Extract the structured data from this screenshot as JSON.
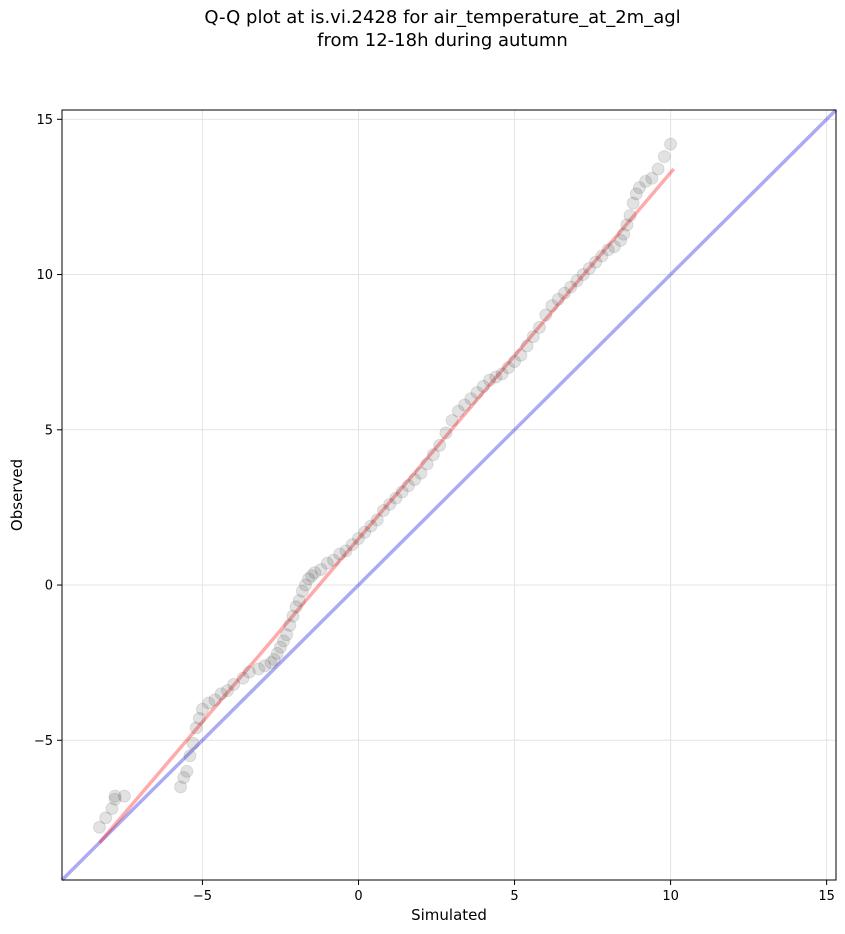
{
  "chart_data": {
    "type": "scatter",
    "title_line1": "Q-Q plot at is.vi.2428 for air_temperature_at_2m_agl",
    "title_line2": "from 12-18h during autumn",
    "xlabel": "Simulated",
    "ylabel": "Observed",
    "xlim": [
      -9.5,
      15.3
    ],
    "ylim": [
      -9.5,
      15.3
    ],
    "xticks": [
      -5,
      0,
      5,
      10,
      15
    ],
    "yticks": [
      -5,
      0,
      5,
      10,
      15
    ],
    "xtick_labels": [
      "−5",
      "0",
      "5",
      "10",
      "15"
    ],
    "ytick_labels": [
      "−5",
      "0",
      "5",
      "10",
      "15"
    ],
    "grid": true,
    "identity_line": {
      "x": [
        -9.5,
        15.3
      ],
      "y": [
        -9.5,
        15.3
      ],
      "color": "#0000dd"
    },
    "fit_line": {
      "x": [
        -8.3,
        10.1
      ],
      "y": [
        -8.3,
        13.4
      ],
      "color": "#ff0000"
    },
    "points": {
      "color": "#333333",
      "x": [
        -8.3,
        -8.1,
        -7.9,
        -7.8,
        -7.8,
        -7.5,
        -5.7,
        -5.6,
        -5.5,
        -5.4,
        -5.3,
        -5.2,
        -5.1,
        -5.0,
        -4.8,
        -4.6,
        -4.4,
        -4.2,
        -4.0,
        -3.7,
        -3.5,
        -3.2,
        -3.0,
        -2.8,
        -2.7,
        -2.6,
        -2.5,
        -2.4,
        -2.3,
        -2.2,
        -2.1,
        -2.0,
        -1.9,
        -1.8,
        -1.7,
        -1.6,
        -1.5,
        -1.4,
        -1.2,
        -1.0,
        -0.8,
        -0.6,
        -0.4,
        -0.2,
        0.0,
        0.2,
        0.4,
        0.6,
        0.8,
        1.0,
        1.2,
        1.4,
        1.6,
        1.8,
        2.0,
        2.2,
        2.4,
        2.6,
        2.8,
        3.0,
        3.2,
        3.4,
        3.6,
        3.8,
        4.0,
        4.2,
        4.4,
        4.6,
        4.8,
        5.0,
        5.2,
        5.4,
        5.6,
        5.8,
        6.0,
        6.2,
        6.4,
        6.6,
        6.8,
        7.0,
        7.2,
        7.4,
        7.6,
        7.8,
        8.0,
        8.2,
        8.4,
        8.5,
        8.6,
        8.7,
        8.8,
        8.9,
        9.0,
        9.2,
        9.4,
        9.6,
        9.8,
        10.0
      ],
      "y": [
        -7.8,
        -7.5,
        -7.2,
        -6.9,
        -6.8,
        -6.8,
        -6.5,
        -6.2,
        -6.0,
        -5.5,
        -5.1,
        -4.6,
        -4.3,
        -4.0,
        -3.8,
        -3.7,
        -3.5,
        -3.4,
        -3.2,
        -3.0,
        -2.8,
        -2.7,
        -2.6,
        -2.5,
        -2.4,
        -2.2,
        -2.0,
        -1.8,
        -1.6,
        -1.3,
        -1.0,
        -0.7,
        -0.5,
        -0.2,
        0.0,
        0.2,
        0.3,
        0.4,
        0.5,
        0.7,
        0.8,
        1.0,
        1.1,
        1.3,
        1.5,
        1.7,
        1.9,
        2.1,
        2.4,
        2.6,
        2.8,
        3.0,
        3.2,
        3.4,
        3.6,
        3.9,
        4.2,
        4.5,
        4.9,
        5.3,
        5.6,
        5.8,
        6.0,
        6.2,
        6.4,
        6.6,
        6.7,
        6.8,
        7.0,
        7.2,
        7.4,
        7.7,
        8.0,
        8.3,
        8.7,
        9.0,
        9.2,
        9.4,
        9.6,
        9.8,
        10.0,
        10.2,
        10.4,
        10.6,
        10.8,
        10.9,
        11.1,
        11.3,
        11.6,
        11.9,
        12.3,
        12.6,
        12.8,
        13.0,
        13.1,
        13.4,
        13.8,
        14.2
      ]
    }
  }
}
